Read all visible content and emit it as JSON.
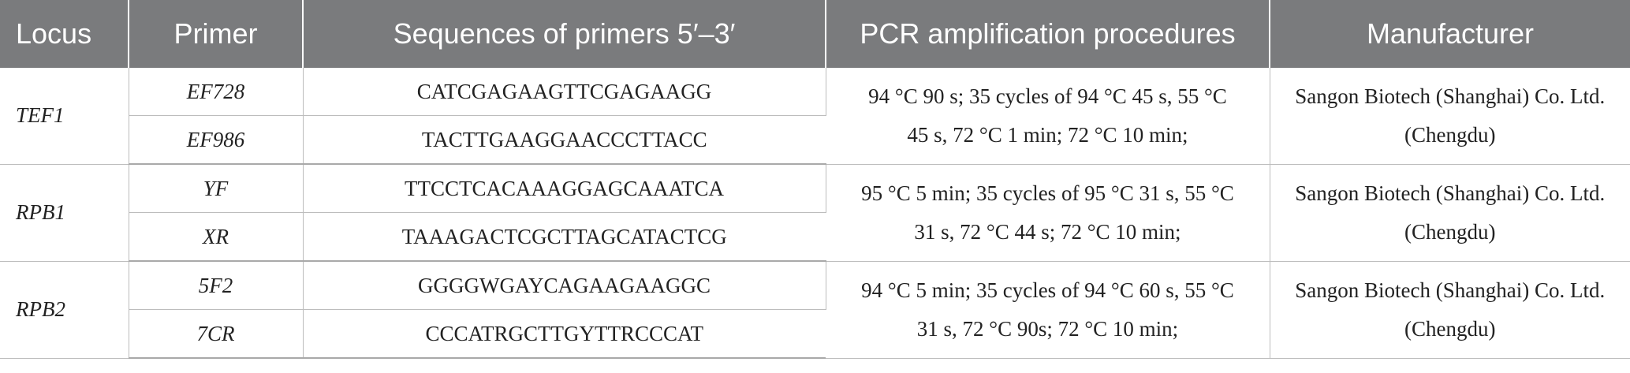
{
  "table": {
    "headers": {
      "locus": "Locus",
      "primer": "Primer",
      "sequence": "Sequences of primers 5′–3′",
      "pcr": "PCR amplification procedures",
      "manufacturer": "Manufacturer"
    },
    "groups": [
      {
        "locus": "TEF1",
        "primers": [
          {
            "name": "EF728",
            "sequence": "CATCGAGAAGTTCGAGAAGG"
          },
          {
            "name": "EF986",
            "sequence": "TACTTGAAGGAACCCTTACC"
          }
        ],
        "pcr_line1": "94 °C 90 s; 35 cycles of 94 °C 45 s, 55 °C",
        "pcr_line2": "45 s, 72 °C 1 min; 72 °C 10 min;",
        "manufacturer_line1": "Sangon Biotech (Shanghai) Co. Ltd.",
        "manufacturer_line2": "(Chengdu)"
      },
      {
        "locus": "RPB1",
        "primers": [
          {
            "name": "YF",
            "sequence": "TTCCTCACAAAGGAGCAAATCA"
          },
          {
            "name": "XR",
            "sequence": "TAAAGACTCGCTTAGCATACTCG"
          }
        ],
        "pcr_line1": "95 °C 5 min; 35 cycles of 95 °C 31 s, 55 °C",
        "pcr_line2": "31 s, 72 °C 44 s; 72 °C 10 min;",
        "manufacturer_line1": "Sangon Biotech (Shanghai) Co. Ltd.",
        "manufacturer_line2": "(Chengdu)"
      },
      {
        "locus": "RPB2",
        "primers": [
          {
            "name": "5F2",
            "sequence": "GGGGWGAYCAGAAGAAGGC"
          },
          {
            "name": "7CR",
            "sequence": "CCCATRGCTTGYTTRCCCAT"
          }
        ],
        "pcr_line1": "94 °C 5 min; 35 cycles of 94 °C 60 s, 55 °C",
        "pcr_line2": "31 s, 72 °C 90s; 72 °C 10 min;",
        "manufacturer_line1": "Sangon Biotech (Shanghai) Co. Ltd.",
        "manufacturer_line2": "(Chengdu)"
      }
    ]
  },
  "colors": {
    "header_bg": "#7a7b7d",
    "header_text": "#ffffff",
    "rule": "#bdbdbd"
  }
}
